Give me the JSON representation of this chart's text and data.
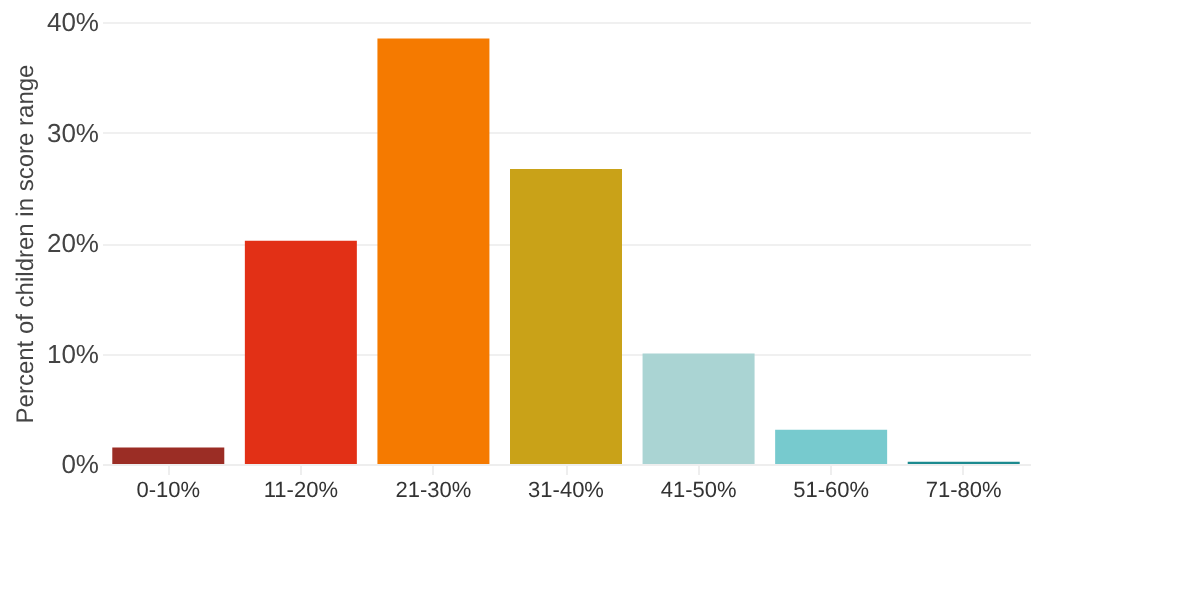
{
  "chart_data": {
    "type": "bar",
    "ylabel": "Percent of children in score range",
    "categories": [
      "0-10%",
      "11-20%",
      "21-30%",
      "31-40%",
      "41-50%",
      "51-60%",
      "71-80%"
    ],
    "values": [
      1.5,
      20.2,
      38.5,
      26.7,
      10.0,
      3.1,
      0.2
    ],
    "colors": [
      "#9b2d25",
      "#e23016",
      "#f57a00",
      "#c9a218",
      "#aad4d3",
      "#77cace",
      "#1c8a8f"
    ],
    "ylim": [
      0,
      40
    ],
    "yticks": [
      {
        "value": 0,
        "label": "0%"
      },
      {
        "value": 10,
        "label": "10%"
      },
      {
        "value": 20,
        "label": "20%"
      },
      {
        "value": 30,
        "label": "30%"
      },
      {
        "value": 40,
        "label": "40%"
      }
    ],
    "grid": "y",
    "legend": false
  }
}
